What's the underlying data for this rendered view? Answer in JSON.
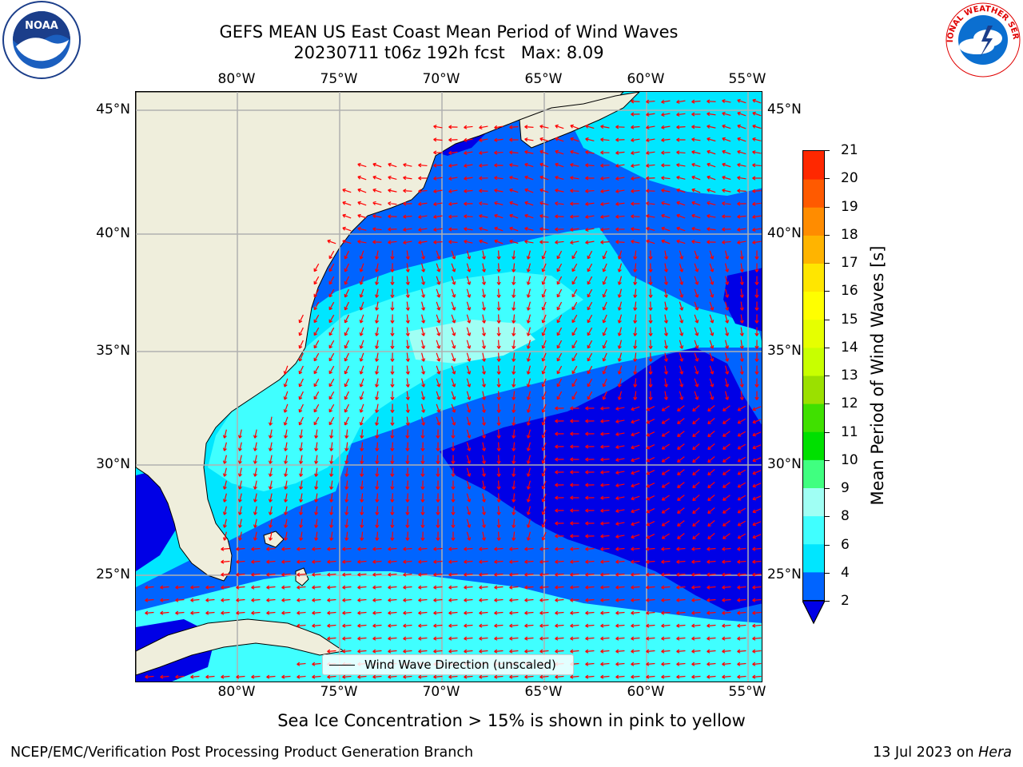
{
  "title": {
    "line1": "GEFS MEAN US East Coast Mean Period of Wind Waves",
    "line2": "20230711 t06z 192h fcst   Max: 8.09"
  },
  "axes": {
    "lon_labels": [
      "80°W",
      "75°W",
      "70°W",
      "65°W",
      "60°W",
      "55°W"
    ],
    "lat_labels": [
      "45°N",
      "40°N",
      "35°N",
      "30°N",
      "25°N"
    ]
  },
  "legend": {
    "label": "Wind Wave Direction (unscaled)"
  },
  "colorbar": {
    "label": "Mean Period of Wind Waves [s]",
    "ticks": [
      "2",
      "4",
      "6",
      "8",
      "9",
      "10",
      "11",
      "12",
      "13",
      "14",
      "15",
      "16",
      "17",
      "18",
      "19",
      "20",
      "21"
    ],
    "colors": [
      "#0064ff",
      "#00e6ff",
      "#40ffff",
      "#a0fff4",
      "#40ff80",
      "#00e000",
      "#40e000",
      "#9be000",
      "#c8ff00",
      "#e6ff00",
      "#ffff00",
      "#ffe600",
      "#ffb400",
      "#ff8c00",
      "#ff5a00",
      "#ff2800",
      "#ff0000"
    ],
    "under_color": "#0000e6"
  },
  "subtitle": "Sea Ice Concentration > 15% is shown in pink to yellow",
  "footer": {
    "left": "NCEP/EMC/Verification Post Processing Product Generation Branch",
    "right_prefix": "13 Jul 2023 on ",
    "right_host": "Hera"
  },
  "logos": {
    "left": "NOAA",
    "right": "NATIONAL WEATHER SERVICE"
  },
  "colors": {
    "land": "#efeedc",
    "arrow": "#ff0000",
    "grid": "#b0b0b0"
  }
}
